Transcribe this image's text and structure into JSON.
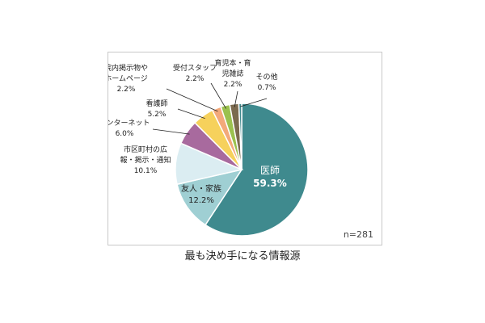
{
  "caption": "最も決め手になる情報源",
  "sample_note": "n=281",
  "colors": {
    "slice": [
      "#3f8a8e",
      "#9fcfd3",
      "#dbedf2",
      "#a86a9e",
      "#f6d15c",
      "#f3a97a",
      "#9bc14f",
      "#7b6a4f"
    ],
    "leader": "#222222",
    "frame_border": "#c8c8c8"
  },
  "chart_data": {
    "type": "pie",
    "title": "最も決め手になる情報源",
    "note": "n=281",
    "slices": [
      {
        "label_lines": [
          "医師"
        ],
        "value_text": "59.3%",
        "value": 59.3
      },
      {
        "label_lines": [
          "友人・家族"
        ],
        "value_text": "12.2%",
        "value": 12.2
      },
      {
        "label_lines": [
          "市区町村の広",
          "報・掲示・通知"
        ],
        "value_text": "10.1%",
        "value": 10.1
      },
      {
        "label_lines": [
          "インターネット"
        ],
        "value_text": "6.0%",
        "value": 6.0
      },
      {
        "label_lines": [
          "看護師"
        ],
        "value_text": "5.2%",
        "value": 5.2
      },
      {
        "label_lines": [
          "院内掲示物や",
          "ホームページ"
        ],
        "value_text": "2.2%",
        "value": 2.2
      },
      {
        "label_lines": [
          "受付スタッフ"
        ],
        "value_text": "2.2%",
        "value": 2.2
      },
      {
        "label_lines": [
          "育児本・育",
          "児雑誌"
        ],
        "value_text": "2.2%",
        "value": 2.2
      },
      {
        "label_lines": [
          "その他"
        ],
        "value_text": "0.7%",
        "value": 0.7
      }
    ]
  }
}
